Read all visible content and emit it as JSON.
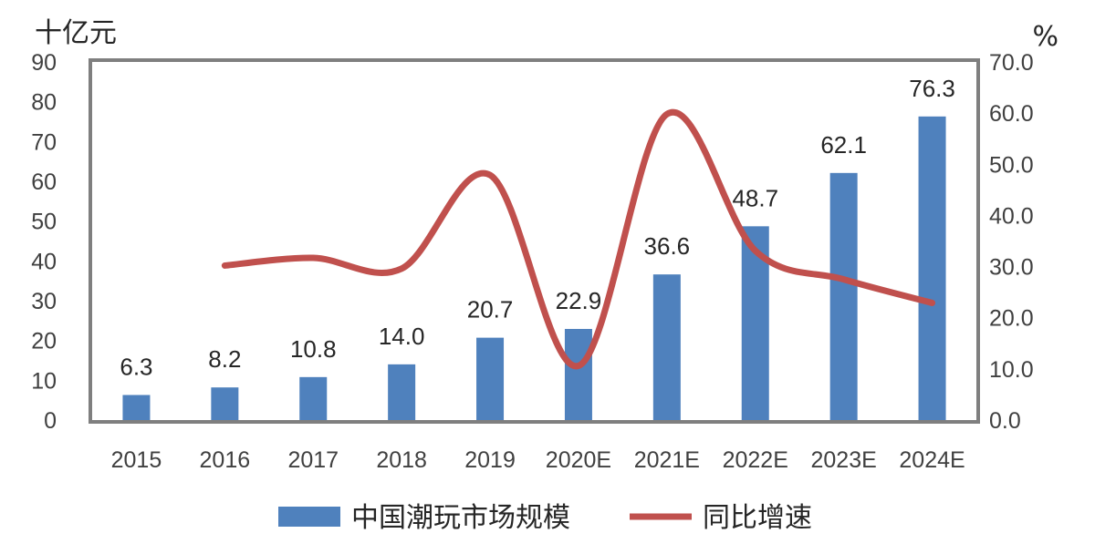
{
  "chart_data": {
    "type": "bar+line",
    "categories": [
      "2015",
      "2016",
      "2017",
      "2018",
      "2019",
      "2020E",
      "2021E",
      "2022E",
      "2023E",
      "2024E"
    ],
    "series": [
      {
        "name": "中国潮玩市场规模",
        "kind": "bar",
        "axis": "left",
        "color": "#4f81bd",
        "values": [
          6.3,
          8.2,
          10.8,
          14.0,
          20.7,
          22.9,
          36.6,
          48.7,
          62.1,
          76.3
        ],
        "labels": [
          "6.3",
          "8.2",
          "10.8",
          "14.0",
          "20.7",
          "22.9",
          "36.6",
          "48.7",
          "62.1",
          "76.3"
        ]
      },
      {
        "name": "同比增速",
        "kind": "line",
        "axis": "right",
        "color": "#c0504d",
        "values": [
          null,
          30.2,
          31.7,
          29.6,
          47.9,
          10.6,
          59.8,
          33.1,
          27.5,
          22.9
        ]
      }
    ],
    "left_axis": {
      "unit": "十亿元",
      "min": 0,
      "max": 90,
      "ticks": [
        "0",
        "10",
        "20",
        "30",
        "40",
        "50",
        "60",
        "70",
        "80",
        "90"
      ]
    },
    "right_axis": {
      "unit": "%",
      "min": 0,
      "max": 70,
      "ticks": [
        "0.0",
        "10.0",
        "20.0",
        "30.0",
        "40.0",
        "50.0",
        "60.0",
        "70.0"
      ]
    },
    "legend": {
      "position": "bottom"
    },
    "grid": false
  }
}
